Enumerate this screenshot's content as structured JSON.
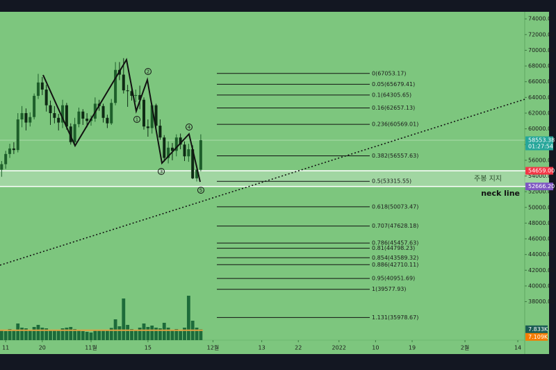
{
  "chart_data": {
    "type": "candlestick",
    "xlim": [
      -0.4,
      128.7
    ],
    "ylim": [
      33100,
      74900
    ],
    "grid": false,
    "xticks": [
      {
        "value": 1,
        "label": "11"
      },
      {
        "value": 10,
        "label": "20"
      },
      {
        "value": 22,
        "label": "11월"
      },
      {
        "value": 36,
        "label": "15"
      },
      {
        "value": 52,
        "label": "12월"
      },
      {
        "value": 64,
        "label": "13"
      },
      {
        "value": 73,
        "label": "22"
      },
      {
        "value": 83,
        "label": "2022"
      },
      {
        "value": 92,
        "label": "10"
      },
      {
        "value": 101,
        "label": "19"
      },
      {
        "value": 114,
        "label": "2월"
      },
      {
        "value": 127,
        "label": "14"
      }
    ],
    "yticks": [
      {
        "value": 38000,
        "label": "38000.00"
      },
      {
        "value": 40000,
        "label": "40000.00"
      },
      {
        "value": 42000,
        "label": "42000.00"
      },
      {
        "value": 44000,
        "label": "44000.00"
      },
      {
        "value": 46000,
        "label": "46000.00"
      },
      {
        "value": 48000,
        "label": "48000.00"
      },
      {
        "value": 50000,
        "label": "50000.00"
      },
      {
        "value": 52000,
        "label": "52000.00"
      },
      {
        "value": 54000,
        "label": "54000.00"
      },
      {
        "value": 56000,
        "label": "56000.00"
      },
      {
        "value": 58000,
        "label": "58000.00"
      },
      {
        "value": 60000,
        "label": "60000.00"
      },
      {
        "value": 62000,
        "label": "62000.00"
      },
      {
        "value": 64000,
        "label": "64000.00"
      },
      {
        "value": 66000,
        "label": "66000.00"
      },
      {
        "value": 68000,
        "label": "68000.00"
      },
      {
        "value": 70000,
        "label": "70000.00"
      },
      {
        "value": 72000,
        "label": "72000.00"
      },
      {
        "value": 74000,
        "label": "74000.00"
      }
    ],
    "up_color": "#1d5e2a",
    "down_color": "#0e2a14",
    "candles": [
      [
        54800,
        55900,
        53900,
        55500
      ],
      [
        55500,
        57200,
        54900,
        56800
      ],
      [
        56800,
        58100,
        56300,
        57500
      ],
      [
        57500,
        58300,
        56800,
        57300
      ],
      [
        57300,
        62000,
        57000,
        61200
      ],
      [
        61200,
        62900,
        60200,
        62000
      ],
      [
        62000,
        62600,
        59800,
        60800
      ],
      [
        60800,
        62100,
        60300,
        61500
      ],
      [
        61500,
        64500,
        61200,
        64200
      ],
      [
        64200,
        67000,
        63800,
        65900
      ],
      [
        65900,
        66600,
        64300,
        65000
      ],
      [
        65000,
        65600,
        62200,
        63000
      ],
      [
        63000,
        63600,
        60500,
        62000
      ],
      [
        62000,
        62900,
        60700,
        61400
      ],
      [
        61400,
        61900,
        59800,
        60800
      ],
      [
        60800,
        63700,
        60100,
        63000
      ],
      [
        63000,
        63300,
        59900,
        60300
      ],
      [
        60300,
        60700,
        58000,
        58300
      ],
      [
        58300,
        61400,
        57800,
        60600
      ],
      [
        60600,
        62700,
        60200,
        62200
      ],
      [
        62200,
        62500,
        60500,
        61300
      ],
      [
        61300,
        62000,
        60200,
        61000
      ],
      [
        61000,
        61700,
        60400,
        61300
      ],
      [
        61300,
        64000,
        60900,
        63200
      ],
      [
        63200,
        63700,
        62300,
        62900
      ],
      [
        62900,
        63200,
        60800,
        61400
      ],
      [
        61400,
        61800,
        60100,
        60700
      ],
      [
        60700,
        63800,
        60500,
        63300
      ],
      [
        63300,
        68500,
        63000,
        67500
      ],
      [
        67500,
        68500,
        66200,
        66900
      ],
      [
        66900,
        69000,
        64500,
        64900
      ],
      [
        64900,
        65600,
        62800,
        64800
      ],
      [
        64800,
        65300,
        63600,
        64200
      ],
      [
        64200,
        65000,
        63400,
        64300
      ],
      [
        64300,
        65500,
        62500,
        63700
      ],
      [
        63700,
        64000,
        59900,
        60300
      ],
      [
        60300,
        61200,
        59000,
        60100
      ],
      [
        60100,
        63200,
        59400,
        63000
      ],
      [
        63000,
        63200,
        59900,
        60400
      ],
      [
        60400,
        61200,
        58600,
        58900
      ],
      [
        58900,
        59200,
        55800,
        56300
      ],
      [
        56300,
        58400,
        55600,
        57600
      ],
      [
        57600,
        58200,
        56000,
        57200
      ],
      [
        57200,
        59300,
        56500,
        58900
      ],
      [
        58900,
        59400,
        57400,
        58000
      ],
      [
        58000,
        58400,
        55900,
        56500
      ],
      [
        56500,
        58100,
        55800,
        57400
      ],
      [
        57400,
        57900,
        53600,
        53700
      ],
      [
        53700,
        55400,
        53300,
        54800
      ],
      [
        54800,
        59300,
        54600,
        58553.38
      ]
    ],
    "volume": {
      "lim": [
        0,
        35000
      ],
      "color": "#1d6b3a",
      "ma_color": "#e0a040",
      "values": [
        7000,
        6500,
        8000,
        7200,
        12000,
        9000,
        8500,
        7000,
        9500,
        11000,
        9000,
        8500,
        7500,
        7000,
        6800,
        8500,
        9000,
        9500,
        8000,
        7500,
        6500,
        6000,
        5500,
        7500,
        6800,
        7200,
        7000,
        8800,
        15000,
        10000,
        30000,
        11000,
        8000,
        7000,
        9000,
        12000,
        9500,
        10500,
        9000,
        8500,
        12500,
        9000,
        7500,
        8000,
        6500,
        9000,
        32000,
        14000,
        9000,
        7833
      ],
      "tags": [
        {
          "label": "7.833K",
          "value": 7833,
          "color": "#1a5c53"
        },
        {
          "label": "7.109K",
          "value": 7109,
          "color": "#f57c00"
        }
      ]
    },
    "fib": {
      "values": [
        67053.17,
        65679.41,
        64305.65,
        62657.13,
        60569.01,
        56557.63,
        53315.55,
        50073.47,
        47628.18,
        45457.63,
        44798.23,
        43589.32,
        42710.11,
        40951.69,
        39577.93,
        35978.67
      ],
      "value_labels": [
        "0(67053.17)",
        "0.05(65679.41)",
        "0.1(64305.65)",
        "0.16(62657.13)",
        "0.236(60569.01)",
        "0.382(56557.63)",
        "0.5(53315.55)",
        "0.618(50073.47)",
        "0.707(47628.18)",
        "0.786(45457.63)",
        "0.81(44798.23)",
        "0.854(43589.32)",
        "0.886(42710.11)",
        "0.95(40951.69)",
        "1(39577.93)",
        "1.131(35978.67)"
      ]
    },
    "support": {
      "label": "주봉 지지",
      "high": 54659.0,
      "low": 52666.2
    },
    "neckline_label": "neck line",
    "wave_labels": [
      "1",
      "2",
      "3",
      "4",
      "5"
    ],
    "price_tags": [
      {
        "label": "58553.38",
        "value": 58553.38,
        "color": "#26a69a",
        "countdown": "01:27:54"
      },
      {
        "label": "54659.00",
        "value": 54659.0,
        "color": "#f23645"
      },
      {
        "label": "52666.20",
        "value": 52666.2,
        "color": "#7e57c2"
      }
    ]
  }
}
